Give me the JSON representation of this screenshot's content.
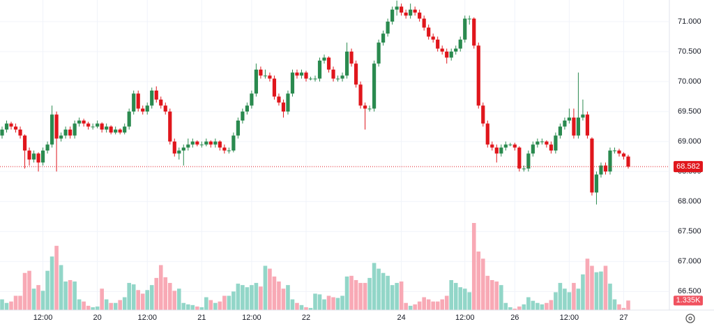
{
  "chart_data": {
    "type": "candlestick",
    "ylim": [
      66.19,
      71.36
    ],
    "yticks": [
      {
        "value": 66.5,
        "label": "66.500"
      },
      {
        "value": 67,
        "label": "67.000"
      },
      {
        "value": 67.5,
        "label": "67.500"
      },
      {
        "value": 68,
        "label": "68.000"
      },
      {
        "value": 68.5,
        "label": "68.500"
      },
      {
        "value": 69,
        "label": "69.000"
      },
      {
        "value": 69.5,
        "label": "69.500"
      },
      {
        "value": 70,
        "label": "70.000"
      },
      {
        "value": 70.5,
        "label": "70.500"
      },
      {
        "value": 71,
        "label": "71.000"
      }
    ],
    "grid": true,
    "up_color": "#2a8a4f",
    "down_color": "#e0161c",
    "volume_up_color": "#92d6c8",
    "volume_down_color": "#f8a9b5",
    "last_price": {
      "value": 68.582,
      "label": "68.582",
      "color": "#e0161c"
    },
    "categories": [
      null,
      null,
      null,
      null,
      null,
      null,
      null,
      null,
      null,
      "12:00",
      null,
      null,
      null,
      null,
      null,
      null,
      null,
      null,
      null,
      null,
      null,
      "20",
      null,
      null,
      null,
      null,
      null,
      null,
      null,
      null,
      null,
      null,
      "12:00",
      null,
      null,
      null,
      null,
      null,
      null,
      null,
      null,
      null,
      null,
      null,
      "21",
      null,
      null,
      null,
      null,
      null,
      null,
      null,
      null,
      null,
      null,
      "12:00",
      null,
      null,
      null,
      null,
      null,
      null,
      null,
      null,
      null,
      null,
      null,
      "22",
      null,
      null,
      null,
      null,
      null,
      null,
      null,
      null,
      null,
      null,
      null,
      null,
      null,
      null,
      null,
      null,
      null,
      null,
      null,
      null,
      "24",
      null,
      null,
      null,
      null,
      null,
      null,
      null,
      null,
      null,
      null,
      null,
      null,
      null,
      "12:00",
      null,
      null,
      null,
      null,
      null,
      null,
      null,
      null,
      null,
      null,
      "26",
      null,
      null,
      null,
      null,
      null,
      null,
      null,
      null,
      null,
      null,
      null,
      "12:00",
      null,
      null,
      null,
      null,
      null,
      null,
      null,
      null,
      null,
      null,
      null,
      "27",
      null
    ],
    "ohlc": [
      [
        69.1,
        69.25,
        69.05,
        69.2
      ],
      [
        69.2,
        69.35,
        69.15,
        69.3
      ],
      [
        69.3,
        69.33,
        69.2,
        69.25
      ],
      [
        69.25,
        69.3,
        69.15,
        69.2
      ],
      [
        69.2,
        69.25,
        69.05,
        69.1
      ],
      [
        69.1,
        69.12,
        68.55,
        68.85
      ],
      [
        68.85,
        68.9,
        68.6,
        68.7
      ],
      [
        68.7,
        68.85,
        68.65,
        68.8
      ],
      [
        68.8,
        68.82,
        68.5,
        68.65
      ],
      [
        68.65,
        68.9,
        68.6,
        68.85
      ],
      [
        68.85,
        69.0,
        68.8,
        68.95
      ],
      [
        68.95,
        69.6,
        68.9,
        69.45
      ],
      [
        69.45,
        69.5,
        68.5,
        69.05
      ],
      [
        69.05,
        69.15,
        69.0,
        69.1
      ],
      [
        69.1,
        69.25,
        69.05,
        69.2
      ],
      [
        69.2,
        69.25,
        69.05,
        69.1
      ],
      [
        69.1,
        69.35,
        69.05,
        69.3
      ],
      [
        69.3,
        69.4,
        69.25,
        69.35
      ],
      [
        69.35,
        69.38,
        69.25,
        69.3
      ],
      [
        69.3,
        69.33,
        69.2,
        69.25
      ],
      [
        69.25,
        69.3,
        69.2,
        69.25
      ],
      [
        69.25,
        69.35,
        69.22,
        69.3
      ],
      [
        69.3,
        69.32,
        69.15,
        69.2
      ],
      [
        69.2,
        69.3,
        69.15,
        69.25
      ],
      [
        69.25,
        69.27,
        69.12,
        69.15
      ],
      [
        69.15,
        69.25,
        69.12,
        69.2
      ],
      [
        69.2,
        69.22,
        69.12,
        69.15
      ],
      [
        69.15,
        69.3,
        69.12,
        69.25
      ],
      [
        69.25,
        69.55,
        69.2,
        69.5
      ],
      [
        69.5,
        69.85,
        69.45,
        69.8
      ],
      [
        69.8,
        69.85,
        69.5,
        69.55
      ],
      [
        69.55,
        69.6,
        69.45,
        69.5
      ],
      [
        69.5,
        69.65,
        69.45,
        69.6
      ],
      [
        69.6,
        69.9,
        69.55,
        69.85
      ],
      [
        69.85,
        69.92,
        69.65,
        69.7
      ],
      [
        69.7,
        69.75,
        69.55,
        69.6
      ],
      [
        69.6,
        69.65,
        69.45,
        69.5
      ],
      [
        69.5,
        69.55,
        68.95,
        69.0
      ],
      [
        69.0,
        69.05,
        68.75,
        68.8
      ],
      [
        68.8,
        68.9,
        68.7,
        68.85
      ],
      [
        68.85,
        68.95,
        68.6,
        68.9
      ],
      [
        68.9,
        69.05,
        68.85,
        68.95
      ],
      [
        68.95,
        69.05,
        68.9,
        69.0
      ],
      [
        69.0,
        69.02,
        68.92,
        68.95
      ],
      [
        68.95,
        69.0,
        68.9,
        68.95
      ],
      [
        68.95,
        69.05,
        68.92,
        69.0
      ],
      [
        69.0,
        69.02,
        68.9,
        68.95
      ],
      [
        68.95,
        69.05,
        68.9,
        69.0
      ],
      [
        69.0,
        69.02,
        68.85,
        68.9
      ],
      [
        68.9,
        68.95,
        68.8,
        68.85
      ],
      [
        68.85,
        68.9,
        68.8,
        68.85
      ],
      [
        68.85,
        69.15,
        68.82,
        69.1
      ],
      [
        69.1,
        69.4,
        69.05,
        69.35
      ],
      [
        69.35,
        69.55,
        69.3,
        69.5
      ],
      [
        69.5,
        69.65,
        69.45,
        69.6
      ],
      [
        69.6,
        69.85,
        69.55,
        69.8
      ],
      [
        69.8,
        70.3,
        69.75,
        70.2
      ],
      [
        70.2,
        70.25,
        70.05,
        70.1
      ],
      [
        70.1,
        70.2,
        70.05,
        70.1
      ],
      [
        70.1,
        70.15,
        70.0,
        70.05
      ],
      [
        70.05,
        70.1,
        69.7,
        69.75
      ],
      [
        69.75,
        69.8,
        69.6,
        69.65
      ],
      [
        69.65,
        69.7,
        69.4,
        69.5
      ],
      [
        69.5,
        69.85,
        69.45,
        69.8
      ],
      [
        69.8,
        70.2,
        69.75,
        70.15
      ],
      [
        70.15,
        70.2,
        70.05,
        70.1
      ],
      [
        70.1,
        70.2,
        70.05,
        70.15
      ],
      [
        70.15,
        70.18,
        70.0,
        70.05
      ],
      [
        70.05,
        70.08,
        70.02,
        70.05
      ],
      [
        70.05,
        70.1,
        70.0,
        70.05
      ],
      [
        70.05,
        70.4,
        70.0,
        70.35
      ],
      [
        70.35,
        70.45,
        70.3,
        70.4
      ],
      [
        70.4,
        70.42,
        70.15,
        70.2
      ],
      [
        70.2,
        70.25,
        70.0,
        70.05
      ],
      [
        70.05,
        70.1,
        70.0,
        70.05
      ],
      [
        70.05,
        70.15,
        70.0,
        70.1
      ],
      [
        70.1,
        70.65,
        70.05,
        70.5
      ],
      [
        70.5,
        70.55,
        70.25,
        70.3
      ],
      [
        70.3,
        70.35,
        69.9,
        69.95
      ],
      [
        69.95,
        70.0,
        69.55,
        69.6
      ],
      [
        69.6,
        69.65,
        69.2,
        69.55
      ],
      [
        69.55,
        69.6,
        69.5,
        69.55
      ],
      [
        69.55,
        70.35,
        69.5,
        70.3
      ],
      [
        70.3,
        70.7,
        70.25,
        70.65
      ],
      [
        70.65,
        70.85,
        70.6,
        70.8
      ],
      [
        70.8,
        71.05,
        70.75,
        71.0
      ],
      [
        71.0,
        71.25,
        70.95,
        71.2
      ],
      [
        71.2,
        71.35,
        71.1,
        71.25
      ],
      [
        71.25,
        71.3,
        71.1,
        71.15
      ],
      [
        71.15,
        71.2,
        71.05,
        71.1
      ],
      [
        71.1,
        71.3,
        71.05,
        71.2
      ],
      [
        71.2,
        71.25,
        71.1,
        71.15
      ],
      [
        71.15,
        71.2,
        71.0,
        71.05
      ],
      [
        71.05,
        71.1,
        70.85,
        70.9
      ],
      [
        70.9,
        70.95,
        70.7,
        70.75
      ],
      [
        70.75,
        70.8,
        70.65,
        70.7
      ],
      [
        70.7,
        70.75,
        70.5,
        70.55
      ],
      [
        70.55,
        70.6,
        70.45,
        70.5
      ],
      [
        70.5,
        70.55,
        70.3,
        70.4
      ],
      [
        70.4,
        70.55,
        70.35,
        70.5
      ],
      [
        70.5,
        70.6,
        70.45,
        70.55
      ],
      [
        70.55,
        70.75,
        70.5,
        70.7
      ],
      [
        70.7,
        71.1,
        70.65,
        71.05
      ],
      [
        71.05,
        71.1,
        70.95,
        71.05
      ],
      [
        71.05,
        71.07,
        70.55,
        70.6
      ],
      [
        70.6,
        70.65,
        69.55,
        69.6
      ],
      [
        69.6,
        69.65,
        69.25,
        69.3
      ],
      [
        69.3,
        69.35,
        68.9,
        68.95
      ],
      [
        68.95,
        69.0,
        68.85,
        68.9
      ],
      [
        68.9,
        68.95,
        68.65,
        68.8
      ],
      [
        68.8,
        68.95,
        68.75,
        68.9
      ],
      [
        68.9,
        69.0,
        68.85,
        68.95
      ],
      [
        68.95,
        68.98,
        68.92,
        68.95
      ],
      [
        68.95,
        68.98,
        68.85,
        68.9
      ],
      [
        68.9,
        68.92,
        68.5,
        68.55
      ],
      [
        68.55,
        68.6,
        68.5,
        68.55
      ],
      [
        68.55,
        68.85,
        68.5,
        68.8
      ],
      [
        68.8,
        69.0,
        68.75,
        68.95
      ],
      [
        68.95,
        69.05,
        68.9,
        69.0
      ],
      [
        69.0,
        69.05,
        68.95,
        69.0
      ],
      [
        69.0,
        69.02,
        68.9,
        68.95
      ],
      [
        68.95,
        69.0,
        68.8,
        68.85
      ],
      [
        68.85,
        69.15,
        68.8,
        69.1
      ],
      [
        69.1,
        69.3,
        69.05,
        69.25
      ],
      [
        69.25,
        69.4,
        69.2,
        69.35
      ],
      [
        69.35,
        69.55,
        69.3,
        69.4
      ],
      [
        69.4,
        69.55,
        69.05,
        69.1
      ],
      [
        69.1,
        70.15,
        69.05,
        69.4
      ],
      [
        69.4,
        69.7,
        69.35,
        69.45
      ],
      [
        69.45,
        69.5,
        69.05,
        69.1
      ],
      [
        69.05,
        69.07,
        68.1,
        68.15
      ],
      [
        68.15,
        68.5,
        67.95,
        68.45
      ],
      [
        68.45,
        68.65,
        68.4,
        68.6
      ],
      [
        68.6,
        68.65,
        68.45,
        68.5
      ],
      [
        68.5,
        68.9,
        68.45,
        68.85
      ],
      [
        68.85,
        68.9,
        68.8,
        68.85
      ],
      [
        68.85,
        68.88,
        68.75,
        68.8
      ],
      [
        68.8,
        68.82,
        68.7,
        68.75
      ],
      [
        68.75,
        68.78,
        68.55,
        68.582
      ]
    ],
    "volume": [
      1500,
      1000,
      1200,
      2000,
      2000,
      5200,
      5500,
      3000,
      3500,
      2700,
      5500,
      7500,
      9000,
      6300,
      4000,
      4200,
      4000,
      1500,
      1200,
      600,
      400,
      500,
      3000,
      1500,
      1000,
      1000,
      1400,
      1800,
      3800,
      3600,
      2800,
      2300,
      2800,
      3500,
      4500,
      6300,
      4600,
      3800,
      2700,
      3000,
      1000,
      800,
      700,
      500,
      400,
      1800,
      1400,
      1000,
      1200,
      2000,
      2000,
      2600,
      3700,
      3500,
      3200,
      3500,
      3800,
      3300,
      6200,
      5800,
      4700,
      4000,
      3000,
      3500,
      1500,
      1000,
      700,
      400,
      300,
      2300,
      2200,
      1500,
      2000,
      1800,
      1700,
      2000,
      4700,
      4800,
      4200,
      3800,
      3800,
      4500,
      6600,
      5800,
      5200,
      4800,
      3500,
      3800,
      4000,
      1000,
      600,
      800,
      1200,
      1800,
      1500,
      1200,
      1200,
      1500,
      2000,
      4200,
      3800,
      3200,
      3000,
      2500,
      12200,
      8200,
      7200,
      4800,
      4200,
      4000,
      3500,
      1000,
      400,
      200,
      500,
      800,
      1800,
      1300,
      1000,
      800,
      1000,
      1400,
      2500,
      3800,
      3000,
      2500,
      3800,
      3000,
      5000,
      7200,
      6200,
      5300,
      5400,
      6200,
      3700,
      1500,
      800,
      300,
      1335
    ],
    "volume_value_labels": {
      "138": "1.335K"
    }
  }
}
